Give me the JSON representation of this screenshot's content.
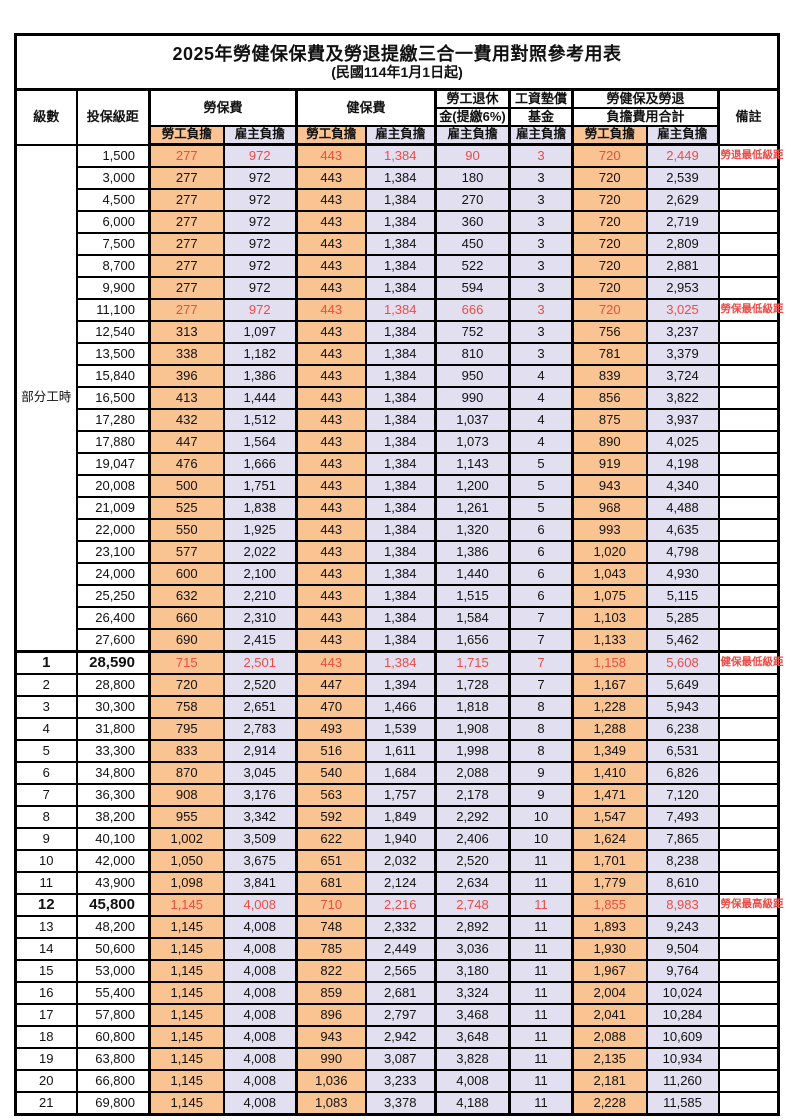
{
  "title": "2025年勞健保保費及勞退提繳三合一費用對照參考用表",
  "subtitle": "(民國114年1月1日起)",
  "colors": {
    "employee_col_bg": "#FAC392",
    "employer_col_bg": "#E2E0F0",
    "highlight_text": "#EA4C46",
    "grid": "#000000"
  },
  "header": {
    "level": "級數",
    "bracket": "投保級距",
    "labor_group": "勞保費",
    "health_group": "健保費",
    "pension_line1": "勞工退休",
    "pension_line2": "金(提繳6%)",
    "fund_line1": "工資墊償",
    "fund_line2": "基金",
    "total_line1": "勞健保及勞退",
    "total_line2": "負擔費用合計",
    "remark": "備註",
    "employee": "勞工負擔",
    "employer": "雇主負擔"
  },
  "part_time_label": "部分工時",
  "rows": [
    {
      "level": "",
      "bracket": "1,500",
      "labor_emp": "277",
      "labor_er": "972",
      "health_emp": "443",
      "health_er": "1,384",
      "pension_er": "90",
      "fund_er": "3",
      "total_emp": "720",
      "total_er": "2,449",
      "remark": "勞退最低級距",
      "red": true,
      "emph": false
    },
    {
      "level": "",
      "bracket": "3,000",
      "labor_emp": "277",
      "labor_er": "972",
      "health_emp": "443",
      "health_er": "1,384",
      "pension_er": "180",
      "fund_er": "3",
      "total_emp": "720",
      "total_er": "2,539",
      "remark": "",
      "red": false,
      "emph": false
    },
    {
      "level": "",
      "bracket": "4,500",
      "labor_emp": "277",
      "labor_er": "972",
      "health_emp": "443",
      "health_er": "1,384",
      "pension_er": "270",
      "fund_er": "3",
      "total_emp": "720",
      "total_er": "2,629",
      "remark": "",
      "red": false,
      "emph": false
    },
    {
      "level": "",
      "bracket": "6,000",
      "labor_emp": "277",
      "labor_er": "972",
      "health_emp": "443",
      "health_er": "1,384",
      "pension_er": "360",
      "fund_er": "3",
      "total_emp": "720",
      "total_er": "2,719",
      "remark": "",
      "red": false,
      "emph": false
    },
    {
      "level": "",
      "bracket": "7,500",
      "labor_emp": "277",
      "labor_er": "972",
      "health_emp": "443",
      "health_er": "1,384",
      "pension_er": "450",
      "fund_er": "3",
      "total_emp": "720",
      "total_er": "2,809",
      "remark": "",
      "red": false,
      "emph": false
    },
    {
      "level": "",
      "bracket": "8,700",
      "labor_emp": "277",
      "labor_er": "972",
      "health_emp": "443",
      "health_er": "1,384",
      "pension_er": "522",
      "fund_er": "3",
      "total_emp": "720",
      "total_er": "2,881",
      "remark": "",
      "red": false,
      "emph": false
    },
    {
      "level": "",
      "bracket": "9,900",
      "labor_emp": "277",
      "labor_er": "972",
      "health_emp": "443",
      "health_er": "1,384",
      "pension_er": "594",
      "fund_er": "3",
      "total_emp": "720",
      "total_er": "2,953",
      "remark": "",
      "red": false,
      "emph": false
    },
    {
      "level": "",
      "bracket": "11,100",
      "labor_emp": "277",
      "labor_er": "972",
      "health_emp": "443",
      "health_er": "1,384",
      "pension_er": "666",
      "fund_er": "3",
      "total_emp": "720",
      "total_er": "3,025",
      "remark": "勞保最低級距",
      "red": true,
      "emph": false
    },
    {
      "level": "",
      "bracket": "12,540",
      "labor_emp": "313",
      "labor_er": "1,097",
      "health_emp": "443",
      "health_er": "1,384",
      "pension_er": "752",
      "fund_er": "3",
      "total_emp": "756",
      "total_er": "3,237",
      "remark": "",
      "red": false,
      "emph": false
    },
    {
      "level": "",
      "bracket": "13,500",
      "labor_emp": "338",
      "labor_er": "1,182",
      "health_emp": "443",
      "health_er": "1,384",
      "pension_er": "810",
      "fund_er": "3",
      "total_emp": "781",
      "total_er": "3,379",
      "remark": "",
      "red": false,
      "emph": false
    },
    {
      "level": "",
      "bracket": "15,840",
      "labor_emp": "396",
      "labor_er": "1,386",
      "health_emp": "443",
      "health_er": "1,384",
      "pension_er": "950",
      "fund_er": "4",
      "total_emp": "839",
      "total_er": "3,724",
      "remark": "",
      "red": false,
      "emph": false
    },
    {
      "level": "",
      "bracket": "16,500",
      "labor_emp": "413",
      "labor_er": "1,444",
      "health_emp": "443",
      "health_er": "1,384",
      "pension_er": "990",
      "fund_er": "4",
      "total_emp": "856",
      "total_er": "3,822",
      "remark": "",
      "red": false,
      "emph": false
    },
    {
      "level": "",
      "bracket": "17,280",
      "labor_emp": "432",
      "labor_er": "1,512",
      "health_emp": "443",
      "health_er": "1,384",
      "pension_er": "1,037",
      "fund_er": "4",
      "total_emp": "875",
      "total_er": "3,937",
      "remark": "",
      "red": false,
      "emph": false
    },
    {
      "level": "",
      "bracket": "17,880",
      "labor_emp": "447",
      "labor_er": "1,564",
      "health_emp": "443",
      "health_er": "1,384",
      "pension_er": "1,073",
      "fund_er": "4",
      "total_emp": "890",
      "total_er": "4,025",
      "remark": "",
      "red": false,
      "emph": false
    },
    {
      "level": "",
      "bracket": "19,047",
      "labor_emp": "476",
      "labor_er": "1,666",
      "health_emp": "443",
      "health_er": "1,384",
      "pension_er": "1,143",
      "fund_er": "5",
      "total_emp": "919",
      "total_er": "4,198",
      "remark": "",
      "red": false,
      "emph": false
    },
    {
      "level": "",
      "bracket": "20,008",
      "labor_emp": "500",
      "labor_er": "1,751",
      "health_emp": "443",
      "health_er": "1,384",
      "pension_er": "1,200",
      "fund_er": "5",
      "total_emp": "943",
      "total_er": "4,340",
      "remark": "",
      "red": false,
      "emph": false
    },
    {
      "level": "",
      "bracket": "21,009",
      "labor_emp": "525",
      "labor_er": "1,838",
      "health_emp": "443",
      "health_er": "1,384",
      "pension_er": "1,261",
      "fund_er": "5",
      "total_emp": "968",
      "total_er": "4,488",
      "remark": "",
      "red": false,
      "emph": false
    },
    {
      "level": "",
      "bracket": "22,000",
      "labor_emp": "550",
      "labor_er": "1,925",
      "health_emp": "443",
      "health_er": "1,384",
      "pension_er": "1,320",
      "fund_er": "6",
      "total_emp": "993",
      "total_er": "4,635",
      "remark": "",
      "red": false,
      "emph": false
    },
    {
      "level": "",
      "bracket": "23,100",
      "labor_emp": "577",
      "labor_er": "2,022",
      "health_emp": "443",
      "health_er": "1,384",
      "pension_er": "1,386",
      "fund_er": "6",
      "total_emp": "1,020",
      "total_er": "4,798",
      "remark": "",
      "red": false,
      "emph": false
    },
    {
      "level": "",
      "bracket": "24,000",
      "labor_emp": "600",
      "labor_er": "2,100",
      "health_emp": "443",
      "health_er": "1,384",
      "pension_er": "1,440",
      "fund_er": "6",
      "total_emp": "1,043",
      "total_er": "4,930",
      "remark": "",
      "red": false,
      "emph": false
    },
    {
      "level": "",
      "bracket": "25,250",
      "labor_emp": "632",
      "labor_er": "2,210",
      "health_emp": "443",
      "health_er": "1,384",
      "pension_er": "1,515",
      "fund_er": "6",
      "total_emp": "1,075",
      "total_er": "5,115",
      "remark": "",
      "red": false,
      "emph": false
    },
    {
      "level": "",
      "bracket": "26,400",
      "labor_emp": "660",
      "labor_er": "2,310",
      "health_emp": "443",
      "health_er": "1,384",
      "pension_er": "1,584",
      "fund_er": "7",
      "total_emp": "1,103",
      "total_er": "5,285",
      "remark": "",
      "red": false,
      "emph": false
    },
    {
      "level": "",
      "bracket": "27,600",
      "labor_emp": "690",
      "labor_er": "2,415",
      "health_emp": "443",
      "health_er": "1,384",
      "pension_er": "1,656",
      "fund_er": "7",
      "total_emp": "1,133",
      "total_er": "5,462",
      "remark": "",
      "red": false,
      "emph": false
    },
    {
      "level": "1",
      "bracket": "28,590",
      "labor_emp": "715",
      "labor_er": "2,501",
      "health_emp": "443",
      "health_er": "1,384",
      "pension_er": "1,715",
      "fund_er": "7",
      "total_emp": "1,158",
      "total_er": "5,608",
      "remark": "健保最低級距",
      "red": true,
      "emph": true
    },
    {
      "level": "2",
      "bracket": "28,800",
      "labor_emp": "720",
      "labor_er": "2,520",
      "health_emp": "447",
      "health_er": "1,394",
      "pension_er": "1,728",
      "fund_er": "7",
      "total_emp": "1,167",
      "total_er": "5,649",
      "remark": "",
      "red": false,
      "emph": false
    },
    {
      "level": "3",
      "bracket": "30,300",
      "labor_emp": "758",
      "labor_er": "2,651",
      "health_emp": "470",
      "health_er": "1,466",
      "pension_er": "1,818",
      "fund_er": "8",
      "total_emp": "1,228",
      "total_er": "5,943",
      "remark": "",
      "red": false,
      "emph": false
    },
    {
      "level": "4",
      "bracket": "31,800",
      "labor_emp": "795",
      "labor_er": "2,783",
      "health_emp": "493",
      "health_er": "1,539",
      "pension_er": "1,908",
      "fund_er": "8",
      "total_emp": "1,288",
      "total_er": "6,238",
      "remark": "",
      "red": false,
      "emph": false
    },
    {
      "level": "5",
      "bracket": "33,300",
      "labor_emp": "833",
      "labor_er": "2,914",
      "health_emp": "516",
      "health_er": "1,611",
      "pension_er": "1,998",
      "fund_er": "8",
      "total_emp": "1,349",
      "total_er": "6,531",
      "remark": "",
      "red": false,
      "emph": false
    },
    {
      "level": "6",
      "bracket": "34,800",
      "labor_emp": "870",
      "labor_er": "3,045",
      "health_emp": "540",
      "health_er": "1,684",
      "pension_er": "2,088",
      "fund_er": "9",
      "total_emp": "1,410",
      "total_er": "6,826",
      "remark": "",
      "red": false,
      "emph": false
    },
    {
      "level": "7",
      "bracket": "36,300",
      "labor_emp": "908",
      "labor_er": "3,176",
      "health_emp": "563",
      "health_er": "1,757",
      "pension_er": "2,178",
      "fund_er": "9",
      "total_emp": "1,471",
      "total_er": "7,120",
      "remark": "",
      "red": false,
      "emph": false
    },
    {
      "level": "8",
      "bracket": "38,200",
      "labor_emp": "955",
      "labor_er": "3,342",
      "health_emp": "592",
      "health_er": "1,849",
      "pension_er": "2,292",
      "fund_er": "10",
      "total_emp": "1,547",
      "total_er": "7,493",
      "remark": "",
      "red": false,
      "emph": false
    },
    {
      "level": "9",
      "bracket": "40,100",
      "labor_emp": "1,002",
      "labor_er": "3,509",
      "health_emp": "622",
      "health_er": "1,940",
      "pension_er": "2,406",
      "fund_er": "10",
      "total_emp": "1,624",
      "total_er": "7,865",
      "remark": "",
      "red": false,
      "emph": false
    },
    {
      "level": "10",
      "bracket": "42,000",
      "labor_emp": "1,050",
      "labor_er": "3,675",
      "health_emp": "651",
      "health_er": "2,032",
      "pension_er": "2,520",
      "fund_er": "11",
      "total_emp": "1,701",
      "total_er": "8,238",
      "remark": "",
      "red": false,
      "emph": false
    },
    {
      "level": "11",
      "bracket": "43,900",
      "labor_emp": "1,098",
      "labor_er": "3,841",
      "health_emp": "681",
      "health_er": "2,124",
      "pension_er": "2,634",
      "fund_er": "11",
      "total_emp": "1,779",
      "total_er": "8,610",
      "remark": "",
      "red": false,
      "emph": false
    },
    {
      "level": "12",
      "bracket": "45,800",
      "labor_emp": "1,145",
      "labor_er": "4,008",
      "health_emp": "710",
      "health_er": "2,216",
      "pension_er": "2,748",
      "fund_er": "11",
      "total_emp": "1,855",
      "total_er": "8,983",
      "remark": "勞保最高級距",
      "red": true,
      "emph": true
    },
    {
      "level": "13",
      "bracket": "48,200",
      "labor_emp": "1,145",
      "labor_er": "4,008",
      "health_emp": "748",
      "health_er": "2,332",
      "pension_er": "2,892",
      "fund_er": "11",
      "total_emp": "1,893",
      "total_er": "9,243",
      "remark": "",
      "red": false,
      "emph": false
    },
    {
      "level": "14",
      "bracket": "50,600",
      "labor_emp": "1,145",
      "labor_er": "4,008",
      "health_emp": "785",
      "health_er": "2,449",
      "pension_er": "3,036",
      "fund_er": "11",
      "total_emp": "1,930",
      "total_er": "9,504",
      "remark": "",
      "red": false,
      "emph": false
    },
    {
      "level": "15",
      "bracket": "53,000",
      "labor_emp": "1,145",
      "labor_er": "4,008",
      "health_emp": "822",
      "health_er": "2,565",
      "pension_er": "3,180",
      "fund_er": "11",
      "total_emp": "1,967",
      "total_er": "9,764",
      "remark": "",
      "red": false,
      "emph": false
    },
    {
      "level": "16",
      "bracket": "55,400",
      "labor_emp": "1,145",
      "labor_er": "4,008",
      "health_emp": "859",
      "health_er": "2,681",
      "pension_er": "3,324",
      "fund_er": "11",
      "total_emp": "2,004",
      "total_er": "10,024",
      "remark": "",
      "red": false,
      "emph": false
    },
    {
      "level": "17",
      "bracket": "57,800",
      "labor_emp": "1,145",
      "labor_er": "4,008",
      "health_emp": "896",
      "health_er": "2,797",
      "pension_er": "3,468",
      "fund_er": "11",
      "total_emp": "2,041",
      "total_er": "10,284",
      "remark": "",
      "red": false,
      "emph": false
    },
    {
      "level": "18",
      "bracket": "60,800",
      "labor_emp": "1,145",
      "labor_er": "4,008",
      "health_emp": "943",
      "health_er": "2,942",
      "pension_er": "3,648",
      "fund_er": "11",
      "total_emp": "2,088",
      "total_er": "10,609",
      "remark": "",
      "red": false,
      "emph": false
    },
    {
      "level": "19",
      "bracket": "63,800",
      "labor_emp": "1,145",
      "labor_er": "4,008",
      "health_emp": "990",
      "health_er": "3,087",
      "pension_er": "3,828",
      "fund_er": "11",
      "total_emp": "2,135",
      "total_er": "10,934",
      "remark": "",
      "red": false,
      "emph": false
    },
    {
      "level": "20",
      "bracket": "66,800",
      "labor_emp": "1,145",
      "labor_er": "4,008",
      "health_emp": "1,036",
      "health_er": "3,233",
      "pension_er": "4,008",
      "fund_er": "11",
      "total_emp": "2,181",
      "total_er": "11,260",
      "remark": "",
      "red": false,
      "emph": false
    },
    {
      "level": "21",
      "bracket": "69,800",
      "labor_emp": "1,145",
      "labor_er": "4,008",
      "health_emp": "1,083",
      "health_er": "3,378",
      "pension_er": "4,188",
      "fund_er": "11",
      "total_emp": "2,228",
      "total_er": "11,585",
      "remark": "",
      "red": false,
      "emph": false
    }
  ]
}
